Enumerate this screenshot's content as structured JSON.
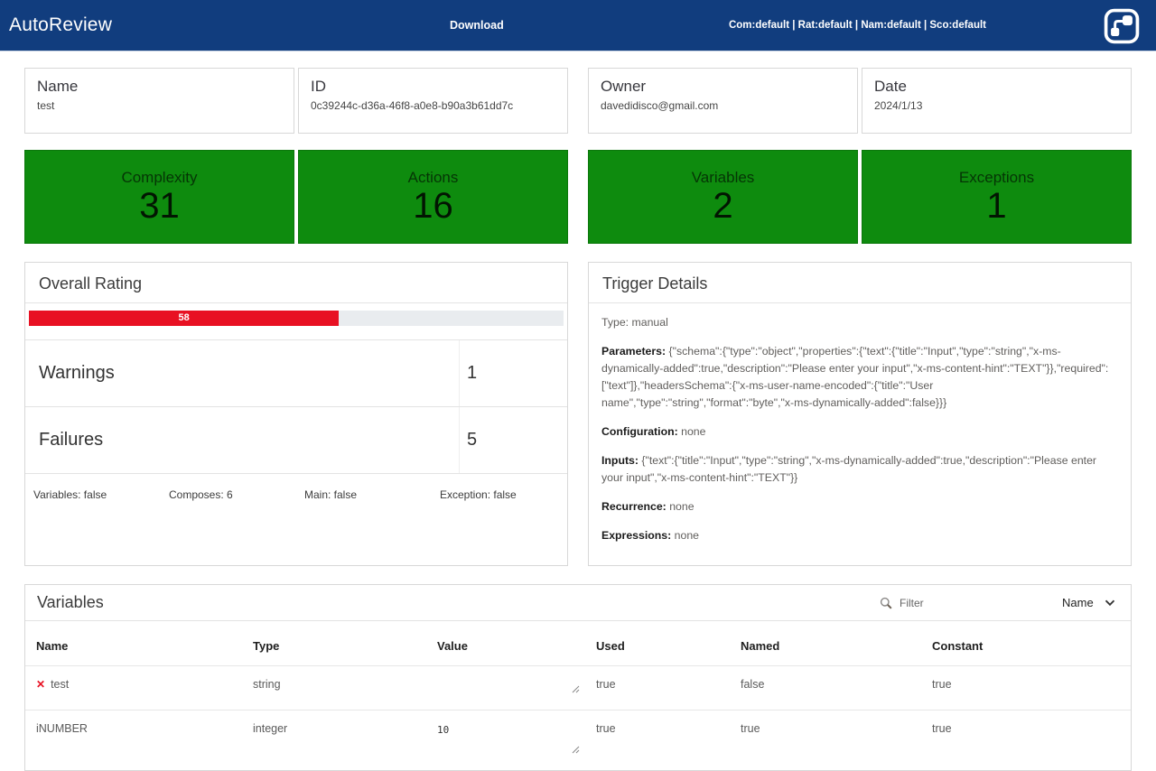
{
  "navbar": {
    "brand": "AutoReview",
    "download_label": "Download",
    "status_text": "Com:default | Rat:default | Nam:default | Sco:default"
  },
  "colors": {
    "navbar_bg": "#113d7e",
    "metric_green": "#0e8b0e",
    "rating_red": "#e81123",
    "flag_red": "#e81123"
  },
  "info_cards": [
    {
      "label": "Name",
      "value": "test"
    },
    {
      "label": "ID",
      "value": "0c39244c-d36a-46f8-a0e8-b90a3b61dd7c"
    },
    {
      "label": "Owner",
      "value": "davedidisco@gmail.com"
    },
    {
      "label": "Date",
      "value": "2024/1/13"
    }
  ],
  "metrics": [
    {
      "label": "Complexity",
      "value": "31"
    },
    {
      "label": "Actions",
      "value": "16"
    },
    {
      "label": "Variables",
      "value": "2"
    },
    {
      "label": "Exceptions",
      "value": "1"
    }
  ],
  "overall_rating": {
    "title": "Overall Rating",
    "value": 58,
    "rows": [
      {
        "label": "Warnings",
        "value": "1"
      },
      {
        "label": "Failures",
        "value": "5"
      }
    ],
    "footer": [
      "Variables: false",
      "Composes: 6",
      "Main: false",
      "Exception: false"
    ]
  },
  "trigger": {
    "title": "Trigger Details",
    "fields": [
      {
        "label": "Type:",
        "value": "manual"
      },
      {
        "label": "Parameters:",
        "value": "{\"schema\":{\"type\":\"object\",\"properties\":{\"text\":{\"title\":\"Input\",\"type\":\"string\",\"x-ms-dynamically-added\":true,\"description\":\"Please enter your input\",\"x-ms-content-hint\":\"TEXT\"}},\"required\":[\"text\"]},\"headersSchema\":{\"x-ms-user-name-encoded\":{\"title\":\"User name\",\"type\":\"string\",\"format\":\"byte\",\"x-ms-dynamically-added\":false}}}"
      },
      {
        "label": "Configuration:",
        "value": "none"
      },
      {
        "label": "Inputs:",
        "value": "{\"text\":{\"title\":\"Input\",\"type\":\"string\",\"x-ms-dynamically-added\":true,\"description\":\"Please enter your input\",\"x-ms-content-hint\":\"TEXT\"}}"
      },
      {
        "label": "Recurrence:",
        "value": "none"
      },
      {
        "label": "Expressions:",
        "value": "none"
      }
    ]
  },
  "variables": {
    "title": "Variables",
    "filter_placeholder": "Filter",
    "sort_selected": "Name",
    "columns": [
      "Name",
      "Type",
      "Value",
      "Used",
      "Named",
      "Constant"
    ],
    "rows": [
      {
        "flag": "✕",
        "name": "test",
        "type": "string",
        "value": "",
        "used": "true",
        "named": "false",
        "constant": "true"
      },
      {
        "flag": "",
        "name": "iNUMBER",
        "type": "integer",
        "value": "10",
        "used": "true",
        "named": "true",
        "constant": "true"
      }
    ]
  }
}
